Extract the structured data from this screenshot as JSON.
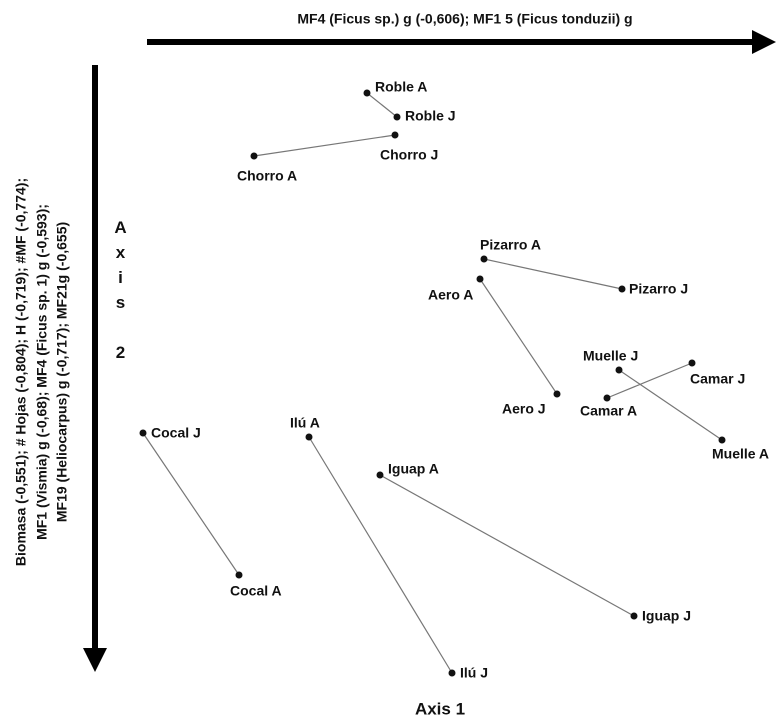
{
  "top_axis_label": "MF4 (Ficus sp.) g (-0,606); MF1 5 (Ficus tonduzii) g",
  "left_axis_label": [
    "Biomasa (-0,551); # Hojas (-0,804); H (-0,719); #MF (-0,774);",
    "MF1 (Vismia) g (-0,68); MF4 (Ficus sp. 1) g (-0,593);",
    "MF19 (Heliocarpus) g (-0,717); MF21g (-0,655)"
  ],
  "axis_2_label": "Axis 2",
  "axis_1_label": "Axis 1",
  "sites": [
    "Roble A",
    "Roble J",
    "Chorro J",
    "Chorro A",
    "Pizarro A",
    "Pizarro J",
    "Aero A",
    "Aero J",
    "Muelle J",
    "Muelle A",
    "Camar J",
    "Camar A",
    "Cocal J",
    "Cocal A",
    "Ilú A",
    "Ilú J",
    "Iguap A",
    "Iguap J"
  ]
}
